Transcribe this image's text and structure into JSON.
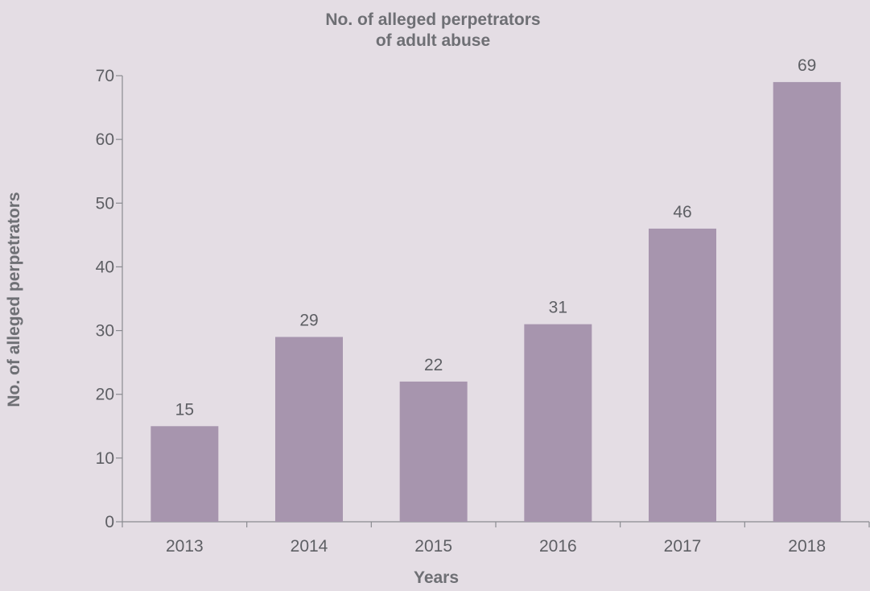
{
  "colors": {
    "background": "#e4dde4",
    "bar": "#a795ae",
    "axis": "#8a8b90",
    "text": "#6e6f74"
  },
  "chart_data": {
    "type": "bar",
    "title_lines": [
      "No. of alleged perpetrators",
      "of adult abuse"
    ],
    "xlabel": "Years",
    "ylabel": "No. of alleged perpetrators",
    "categories": [
      "2013",
      "2014",
      "2015",
      "2016",
      "2017",
      "2018"
    ],
    "values": [
      15,
      29,
      22,
      31,
      46,
      69
    ],
    "data_labels": [
      "15",
      "29",
      "22",
      "31",
      "46",
      "69"
    ],
    "ylim": [
      0,
      70
    ],
    "yticks": [
      0,
      10,
      20,
      30,
      40,
      50,
      60,
      70
    ],
    "grid": false,
    "legend": "none"
  }
}
